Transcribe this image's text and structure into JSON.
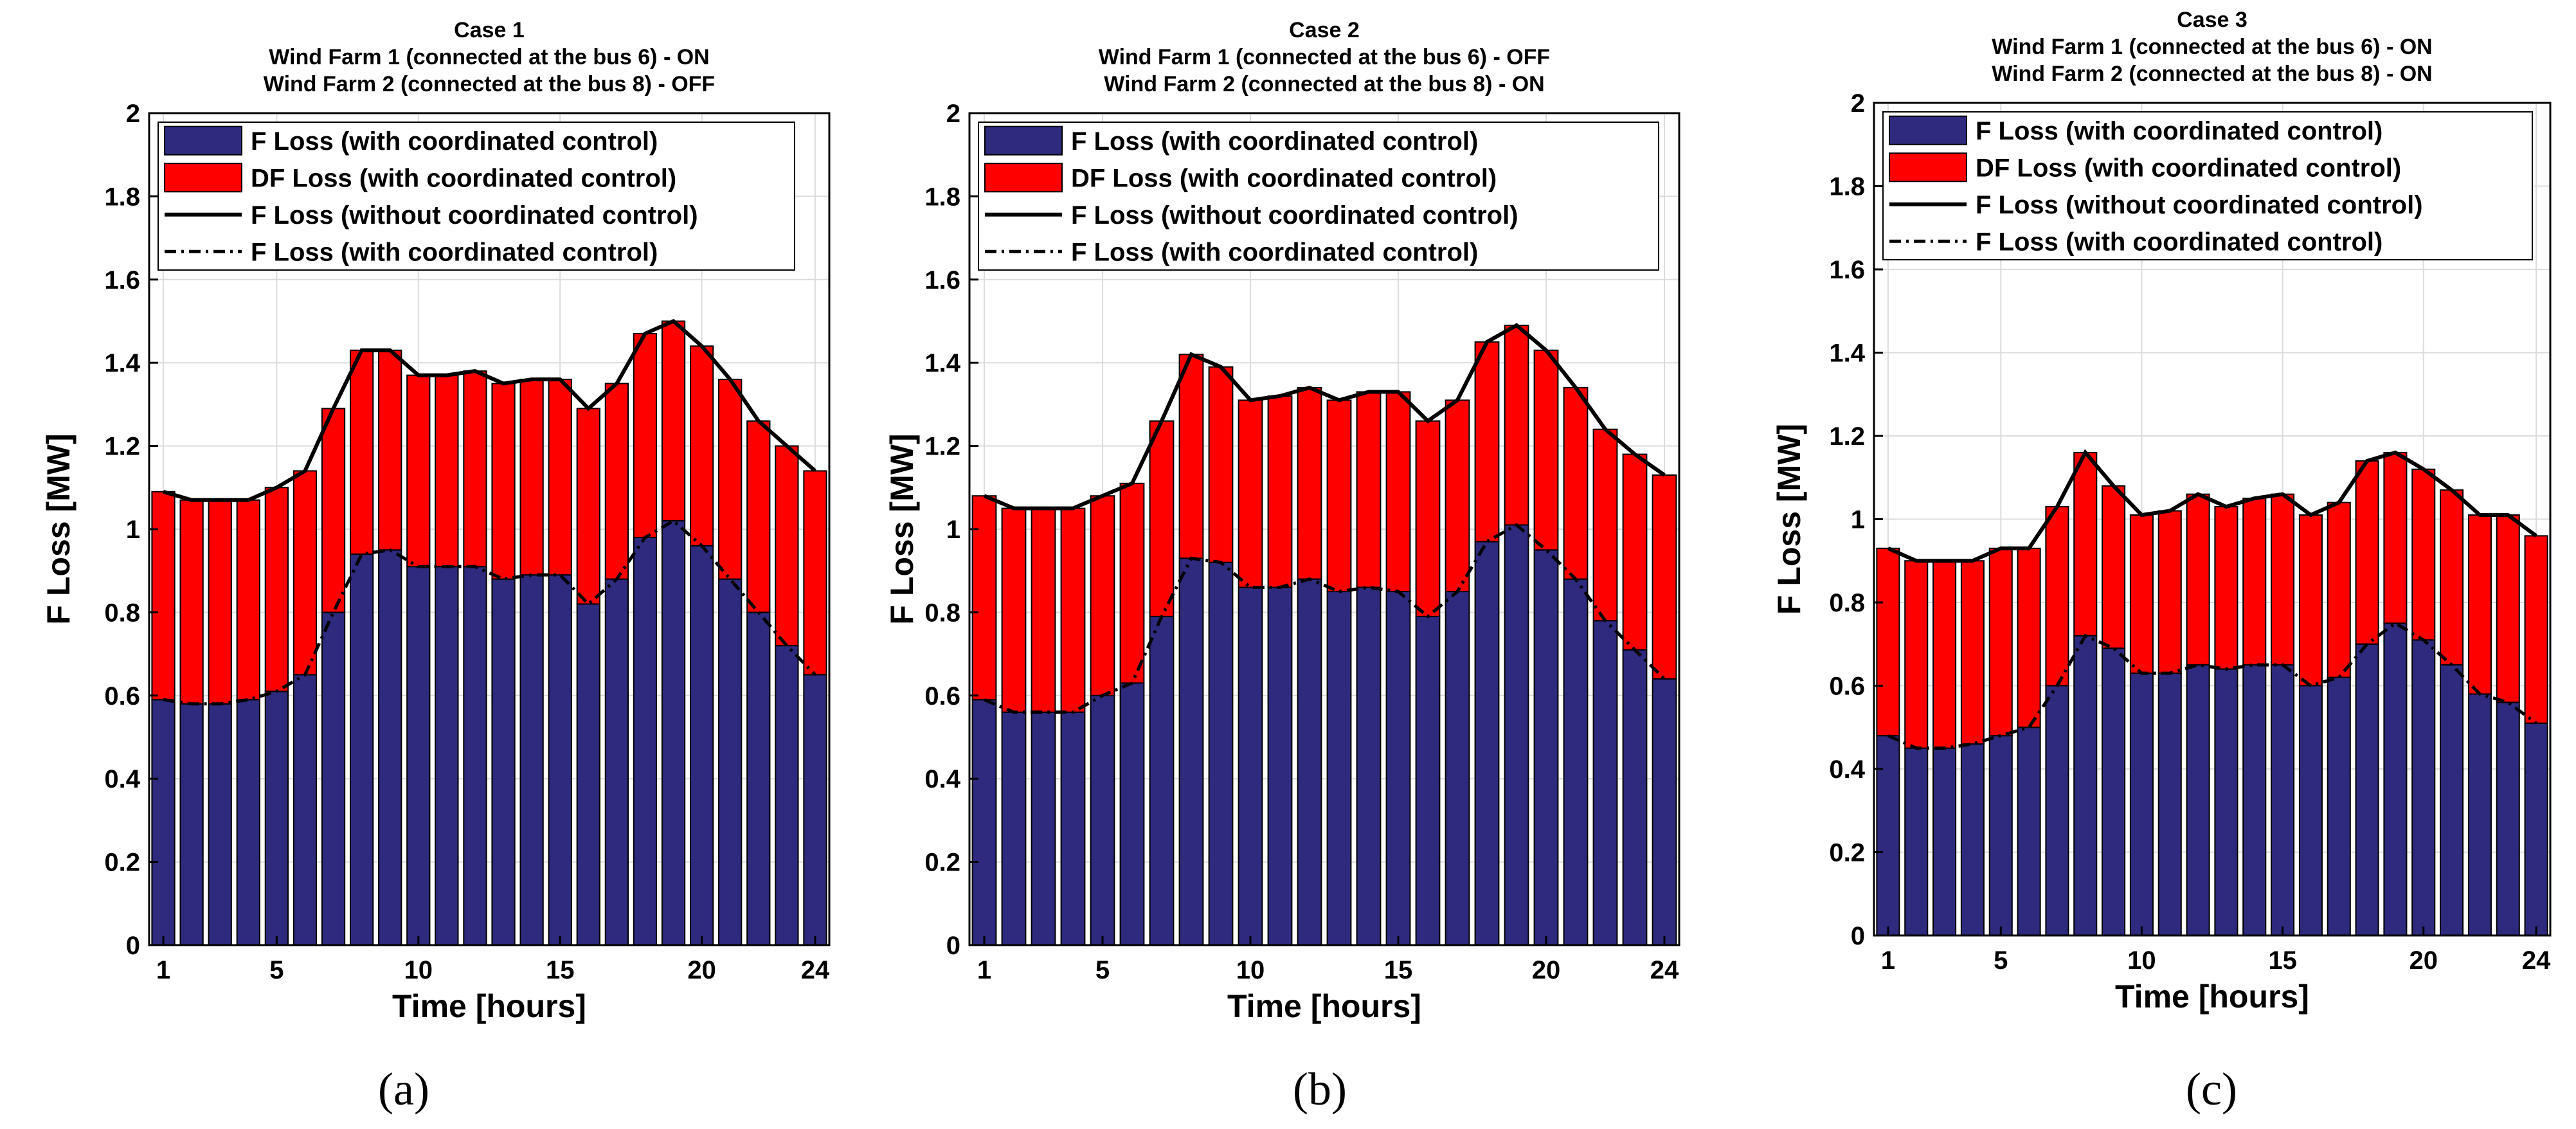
{
  "colors": {
    "f_loss_bar": "#2E2A7E",
    "df_loss_bar": "#FF0000",
    "bar_edge": "#000000",
    "grid": "#dcdcdc",
    "line": "#000000"
  },
  "chart_data": [
    {
      "type": "bar",
      "stacked": true,
      "title": "Case 1",
      "subtitle": [
        "Wind Farm 1 (connected at the bus 6) - ON",
        "Wind Farm 2 (connected at the bus 8) - OFF"
      ],
      "caption": "(a)",
      "xlabel": "Time [hours]",
      "ylabel": "F Loss [MW]",
      "x": [
        1,
        2,
        3,
        4,
        5,
        6,
        7,
        8,
        9,
        10,
        11,
        12,
        13,
        14,
        15,
        16,
        17,
        18,
        19,
        20,
        21,
        22,
        23,
        24
      ],
      "xticks": [
        "1",
        "5",
        "10",
        "15",
        "20",
        "24"
      ],
      "xtick_values": [
        1,
        5,
        10,
        15,
        20,
        24
      ],
      "yticks": [
        "0",
        "0.2",
        "0.4",
        "0.6",
        "0.8",
        "1",
        "1.2",
        "1.4",
        "1.6",
        "1.8",
        "2"
      ],
      "ylim": [
        0,
        2
      ],
      "xlim": [
        0.5,
        24.5
      ],
      "grid": true,
      "legend_position": "top",
      "series": [
        {
          "name": "F Loss (with coordinated control)",
          "kind": "bar",
          "values": [
            0.59,
            0.58,
            0.58,
            0.59,
            0.61,
            0.65,
            0.8,
            0.94,
            0.95,
            0.91,
            0.91,
            0.91,
            0.88,
            0.89,
            0.89,
            0.82,
            0.88,
            0.98,
            1.02,
            0.96,
            0.88,
            0.8,
            0.72,
            0.65
          ]
        },
        {
          "name": "DF Loss (with coordinated control)",
          "kind": "bar",
          "values": [
            0.5,
            0.49,
            0.49,
            0.48,
            0.49,
            0.49,
            0.49,
            0.49,
            0.48,
            0.46,
            0.46,
            0.47,
            0.47,
            0.47,
            0.47,
            0.47,
            0.47,
            0.49,
            0.48,
            0.48,
            0.48,
            0.46,
            0.48,
            0.49
          ]
        },
        {
          "name": "F Loss (without coordinated control)",
          "kind": "line",
          "style": "solid",
          "values": [
            1.09,
            1.07,
            1.07,
            1.07,
            1.1,
            1.14,
            1.29,
            1.43,
            1.43,
            1.37,
            1.37,
            1.38,
            1.35,
            1.36,
            1.36,
            1.29,
            1.35,
            1.47,
            1.5,
            1.44,
            1.36,
            1.26,
            1.2,
            1.14
          ]
        },
        {
          "name": "F Loss (with coordinated control)",
          "kind": "line",
          "style": "dashdot",
          "values": [
            0.59,
            0.58,
            0.58,
            0.59,
            0.61,
            0.65,
            0.8,
            0.94,
            0.95,
            0.91,
            0.91,
            0.91,
            0.88,
            0.89,
            0.89,
            0.82,
            0.88,
            0.98,
            1.02,
            0.96,
            0.88,
            0.8,
            0.72,
            0.65
          ]
        }
      ]
    },
    {
      "type": "bar",
      "stacked": true,
      "title": "Case 2",
      "subtitle": [
        "Wind Farm 1 (connected at the bus 6) - OFF",
        "Wind Farm 2 (connected at the bus 8) - ON"
      ],
      "caption": "(b)",
      "xlabel": "Time [hours]",
      "ylabel": "F Loss [MW]",
      "x": [
        1,
        2,
        3,
        4,
        5,
        6,
        7,
        8,
        9,
        10,
        11,
        12,
        13,
        14,
        15,
        16,
        17,
        18,
        19,
        20,
        21,
        22,
        23,
        24
      ],
      "xticks": [
        "1",
        "5",
        "10",
        "15",
        "20",
        "24"
      ],
      "xtick_values": [
        1,
        5,
        10,
        15,
        20,
        24
      ],
      "yticks": [
        "0",
        "0.2",
        "0.4",
        "0.6",
        "0.8",
        "1",
        "1.2",
        "1.4",
        "1.6",
        "1.8",
        "2"
      ],
      "ylim": [
        0,
        2
      ],
      "xlim": [
        0.5,
        24.5
      ],
      "grid": true,
      "legend_position": "top",
      "series": [
        {
          "name": "F Loss (with coordinated control)",
          "kind": "bar",
          "values": [
            0.59,
            0.56,
            0.56,
            0.56,
            0.6,
            0.63,
            0.79,
            0.93,
            0.92,
            0.86,
            0.86,
            0.88,
            0.85,
            0.86,
            0.85,
            0.79,
            0.85,
            0.97,
            1.01,
            0.95,
            0.88,
            0.78,
            0.71,
            0.64
          ]
        },
        {
          "name": "DF Loss (with coordinated control)",
          "kind": "bar",
          "values": [
            0.49,
            0.49,
            0.49,
            0.49,
            0.48,
            0.48,
            0.47,
            0.49,
            0.47,
            0.45,
            0.46,
            0.46,
            0.46,
            0.47,
            0.48,
            0.47,
            0.46,
            0.48,
            0.48,
            0.48,
            0.46,
            0.46,
            0.47,
            0.49
          ]
        },
        {
          "name": "F Loss (without coordinated control)",
          "kind": "line",
          "style": "solid",
          "values": [
            1.08,
            1.05,
            1.05,
            1.05,
            1.08,
            1.11,
            1.26,
            1.42,
            1.39,
            1.31,
            1.32,
            1.34,
            1.31,
            1.33,
            1.33,
            1.26,
            1.31,
            1.45,
            1.49,
            1.43,
            1.34,
            1.24,
            1.18,
            1.13
          ]
        },
        {
          "name": "F Loss (with coordinated control)",
          "kind": "line",
          "style": "dashdot",
          "values": [
            0.59,
            0.56,
            0.56,
            0.56,
            0.6,
            0.63,
            0.79,
            0.93,
            0.92,
            0.86,
            0.86,
            0.88,
            0.85,
            0.86,
            0.85,
            0.79,
            0.85,
            0.97,
            1.01,
            0.95,
            0.88,
            0.78,
            0.71,
            0.64
          ]
        }
      ]
    },
    {
      "type": "bar",
      "stacked": true,
      "title": "Case 3",
      "subtitle": [
        "Wind Farm 1 (connected at the bus 6) - ON",
        "Wind Farm 2 (connected at the bus 8) - ON"
      ],
      "caption": "(c)",
      "xlabel": "Time [hours]",
      "ylabel": "F Loss [MW]",
      "x": [
        1,
        2,
        3,
        4,
        5,
        6,
        7,
        8,
        9,
        10,
        11,
        12,
        13,
        14,
        15,
        16,
        17,
        18,
        19,
        20,
        21,
        22,
        23,
        24
      ],
      "xticks": [
        "1",
        "5",
        "10",
        "15",
        "20",
        "24"
      ],
      "xtick_values": [
        1,
        5,
        10,
        15,
        20,
        24
      ],
      "yticks": [
        "0",
        "0.2",
        "0.4",
        "0.6",
        "0.8",
        "1",
        "1.2",
        "1.4",
        "1.6",
        "1.8",
        "2"
      ],
      "ylim": [
        0,
        2
      ],
      "xlim": [
        0.5,
        24.5
      ],
      "grid": true,
      "legend_position": "top",
      "series": [
        {
          "name": "F Loss (with coordinated control)",
          "kind": "bar",
          "values": [
            0.48,
            0.45,
            0.45,
            0.46,
            0.48,
            0.5,
            0.6,
            0.72,
            0.69,
            0.63,
            0.63,
            0.65,
            0.64,
            0.65,
            0.65,
            0.6,
            0.62,
            0.7,
            0.75,
            0.71,
            0.65,
            0.58,
            0.56,
            0.51
          ]
        },
        {
          "name": "DF Loss (with coordinated control)",
          "kind": "bar",
          "values": [
            0.45,
            0.45,
            0.45,
            0.44,
            0.45,
            0.43,
            0.43,
            0.44,
            0.39,
            0.38,
            0.39,
            0.41,
            0.39,
            0.4,
            0.41,
            0.41,
            0.42,
            0.44,
            0.41,
            0.41,
            0.42,
            0.43,
            0.45,
            0.45
          ]
        },
        {
          "name": "F Loss (without coordinated control)",
          "kind": "line",
          "style": "solid",
          "values": [
            0.93,
            0.9,
            0.9,
            0.9,
            0.93,
            0.93,
            1.03,
            1.16,
            1.08,
            1.01,
            1.02,
            1.06,
            1.03,
            1.05,
            1.06,
            1.01,
            1.04,
            1.14,
            1.16,
            1.12,
            1.07,
            1.01,
            1.01,
            0.96
          ]
        },
        {
          "name": "F Loss (with coordinated control)",
          "kind": "line",
          "style": "dashdot",
          "values": [
            0.48,
            0.45,
            0.45,
            0.46,
            0.48,
            0.5,
            0.6,
            0.72,
            0.69,
            0.63,
            0.63,
            0.65,
            0.64,
            0.65,
            0.65,
            0.6,
            0.62,
            0.7,
            0.75,
            0.71,
            0.65,
            0.58,
            0.56,
            0.51
          ]
        }
      ]
    }
  ]
}
